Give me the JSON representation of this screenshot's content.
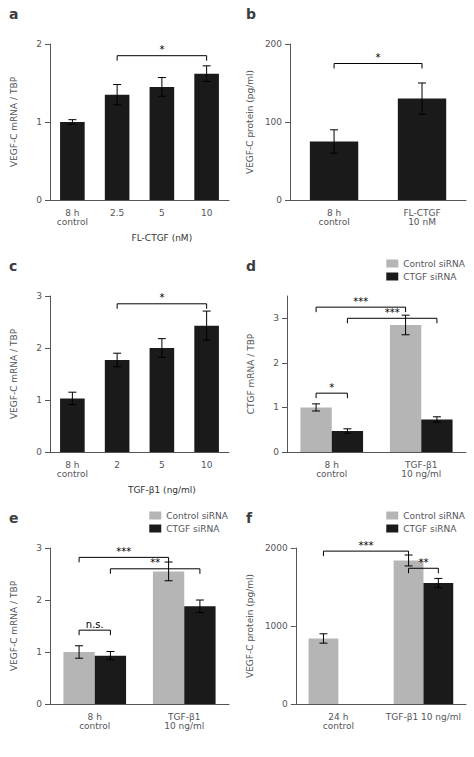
{
  "chart_data": [
    {
      "type": "bar",
      "title": "a",
      "categories": [
        "8 h\ncontrol",
        "2.5",
        "5",
        "10"
      ],
      "values": [
        1.0,
        1.35,
        1.45,
        1.62
      ],
      "errors": [
        0.03,
        0.13,
        0.12,
        0.1
      ],
      "color": "#1a1a1a",
      "ylabel": "VEGF-C mRNA / TBP",
      "ylim": [
        0,
        2.0
      ],
      "yticks": [
        0,
        1,
        2
      ],
      "grid": false,
      "annotations": [
        {
          "type": "group_label",
          "categories": [
            "2.5",
            "5",
            "10"
          ],
          "label": "FL-CTGF (nM)"
        },
        {
          "type": "bracket",
          "from": {
            "category": "2.5"
          },
          "to": {
            "category": "10"
          },
          "y": 1.85,
          "label": "*"
        }
      ]
    },
    {
      "type": "bar",
      "title": "b",
      "categories": [
        "8 h\ncontrol",
        "FL-CTGF\n10 nM"
      ],
      "values": [
        75,
        130
      ],
      "errors": [
        15,
        20
      ],
      "color": "#1a1a1a",
      "ylabel": "VEGF-C protein (pg/ml)",
      "ylim": [
        0,
        200
      ],
      "yticks": [
        0,
        100,
        200
      ],
      "grid": false,
      "annotations": [
        {
          "type": "bracket",
          "from": {
            "category": "8 h\ncontrol"
          },
          "to": {
            "category": "FL-CTGF\n10 nM"
          },
          "y": 175,
          "label": "*"
        }
      ]
    },
    {
      "type": "bar",
      "title": "c",
      "categories": [
        "8 h\ncontrol",
        "2",
        "5",
        "10"
      ],
      "values": [
        1.03,
        1.77,
        2.0,
        2.43
      ],
      "errors": [
        0.12,
        0.13,
        0.18,
        0.28
      ],
      "color": "#1a1a1a",
      "ylabel": "VEGF-C mRNA / TBP",
      "ylim": [
        0,
        3.0
      ],
      "yticks": [
        0,
        1,
        2,
        3
      ],
      "grid": false,
      "annotations": [
        {
          "type": "group_label",
          "categories": [
            "2",
            "5",
            "10"
          ],
          "label": "TGF-β1 (ng/ml)"
        },
        {
          "type": "bracket",
          "from": {
            "category": "2"
          },
          "to": {
            "category": "10"
          },
          "y": 2.85,
          "label": "*"
        }
      ]
    },
    {
      "type": "bar",
      "title": "d",
      "categories": [
        "8 h\ncontrol",
        "TGF-β1\n10 ng/ml"
      ],
      "series": [
        {
          "name": "Control siRNA",
          "color": "#b5b5b5",
          "values": [
            1.0,
            2.85
          ],
          "errors": [
            0.08,
            0.22
          ]
        },
        {
          "name": "CTGF siRNA",
          "color": "#1a1a1a",
          "values": [
            0.47,
            0.73
          ],
          "errors": [
            0.05,
            0.06
          ]
        }
      ],
      "ylabel": "CTGF mRNA / TBP",
      "ylim": [
        0,
        3.5
      ],
      "yticks": [
        0,
        1,
        2,
        3
      ],
      "grid": false,
      "legend": "upper right",
      "annotations": [
        {
          "type": "bracket",
          "from": {
            "category": "8 h\ncontrol",
            "series": "Control siRNA"
          },
          "to": {
            "category": "8 h\ncontrol",
            "series": "CTGF siRNA"
          },
          "y": 1.32,
          "label": "*"
        },
        {
          "type": "bracket",
          "from": {
            "category": "8 h\ncontrol",
            "series": "Control siRNA"
          },
          "to": {
            "category": "TGF-β1\n10 ng/ml",
            "series": "Control siRNA"
          },
          "y": 3.25,
          "label": "***"
        },
        {
          "type": "bracket",
          "from": {
            "category": "8 h\ncontrol",
            "series": "CTGF siRNA"
          },
          "to": {
            "category": "TGF-β1\n10 ng/ml",
            "series": "CTGF siRNA"
          },
          "y": 3.0,
          "label": "***"
        }
      ]
    },
    {
      "type": "bar",
      "title": "e",
      "categories": [
        "8 h\ncontrol",
        "TGF-β1\n10 ng/ml"
      ],
      "series": [
        {
          "name": "Control siRNA",
          "color": "#b5b5b5",
          "values": [
            1.0,
            2.55
          ],
          "errors": [
            0.12,
            0.18
          ]
        },
        {
          "name": "CTGF siRNA",
          "color": "#1a1a1a",
          "values": [
            0.93,
            1.88
          ],
          "errors": [
            0.08,
            0.12
          ]
        }
      ],
      "ylabel": "VEGF-C mRNA / TBP",
      "ylim": [
        0,
        3.0
      ],
      "yticks": [
        0,
        1,
        2,
        3
      ],
      "grid": false,
      "legend": "upper right",
      "annotations": [
        {
          "type": "bracket",
          "from": {
            "category": "8 h\ncontrol",
            "series": "Control siRNA"
          },
          "to": {
            "category": "8 h\ncontrol",
            "series": "CTGF siRNA"
          },
          "y": 1.42,
          "label": "n.s."
        },
        {
          "type": "bracket",
          "from": {
            "category": "8 h\ncontrol",
            "series": "Control siRNA"
          },
          "to": {
            "category": "TGF-β1\n10 ng/ml",
            "series": "Control siRNA"
          },
          "y": 2.82,
          "label": "***"
        },
        {
          "type": "bracket",
          "from": {
            "category": "8 h\ncontrol",
            "series": "CTGF siRNA"
          },
          "to": {
            "category": "TGF-β1\n10 ng/ml",
            "series": "CTGF siRNA"
          },
          "y": 2.6,
          "label": "**"
        }
      ]
    },
    {
      "type": "bar",
      "title": "f",
      "categories": [
        "24 h\ncontrol",
        "TGF-β1 10 ng/ml"
      ],
      "series": [
        {
          "name": "Control siRNA",
          "color": "#b5b5b5",
          "values": [
            840,
            1840
          ],
          "errors": [
            60,
            70
          ]
        },
        {
          "name": "CTGF siRNA",
          "color": "#1a1a1a",
          "values": [
            null,
            1550
          ],
          "errors": [
            null,
            60
          ]
        }
      ],
      "ylabel": "VEGF-C protein (pg/ml)",
      "ylim": [
        0,
        2000
      ],
      "yticks": [
        0,
        1000,
        2000
      ],
      "grid": false,
      "legend": "upper right",
      "annotations": [
        {
          "type": "bracket",
          "from": {
            "category": "24 h\ncontrol",
            "series": "Control siRNA"
          },
          "to": {
            "category": "TGF-β1 10 ng/ml",
            "series": "Control siRNA"
          },
          "y": 1960,
          "label": "***"
        },
        {
          "type": "bracket",
          "from": {
            "category": "TGF-β1 10 ng/ml",
            "series": "Control siRNA"
          },
          "to": {
            "category": "TGF-β1 10 ng/ml",
            "series": "CTGF siRNA"
          },
          "y": 1740,
          "label": "**"
        }
      ]
    }
  ]
}
